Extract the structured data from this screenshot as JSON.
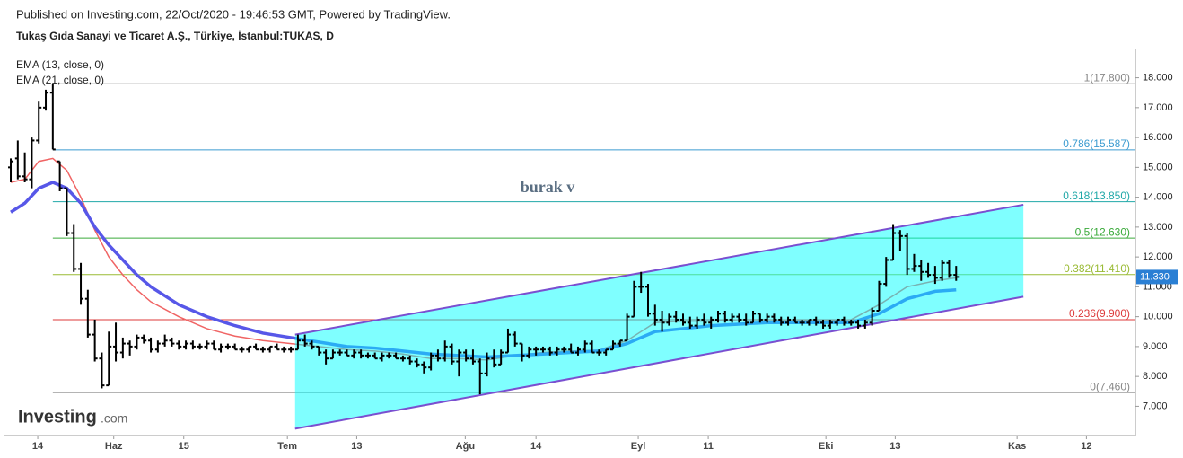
{
  "chart_data": {
    "type": "ohlc",
    "header": "Published on Investing.com, 22/Oct/2020 - 19:46:53 GMT, Powered by TradingView.",
    "title": "Tukaş Gıda Sanayi ve Ticaret A.Ş., Türkiye, İstanbul:TUKAS, D",
    "annotation": "burak v",
    "logo": "Investing",
    "logo_suffix": ".com",
    "bar_color": "#000000",
    "xlim": [
      -0.9,
      160.6
    ],
    "ylim": [
      6.05,
      18.95
    ],
    "yticks": [
      {
        "value": 7,
        "label": "7.000"
      },
      {
        "value": 8,
        "label": "8.000"
      },
      {
        "value": 9,
        "label": "9.000"
      },
      {
        "value": 10,
        "label": "10.000"
      },
      {
        "value": 11,
        "label": "11.000"
      },
      {
        "value": 12,
        "label": "12.000"
      },
      {
        "value": 13,
        "label": "13.000"
      },
      {
        "value": 14,
        "label": "14.000"
      },
      {
        "value": 15,
        "label": "15.000"
      },
      {
        "value": 16,
        "label": "16.000"
      },
      {
        "value": 17,
        "label": "17.000"
      },
      {
        "value": 18,
        "label": "18.000"
      }
    ],
    "xticks": [
      {
        "value": 3.85,
        "label": "14"
      },
      {
        "value": 14.7,
        "label": "Haz"
      },
      {
        "value": 24.7,
        "label": "15"
      },
      {
        "value": 39.5,
        "label": "Tem"
      },
      {
        "value": 49.4,
        "label": "13"
      },
      {
        "value": 64.9,
        "label": "Ağu"
      },
      {
        "value": 75,
        "label": "14"
      },
      {
        "value": 89.6,
        "label": "Eyl"
      },
      {
        "value": 99.6,
        "label": "11"
      },
      {
        "value": 116.4,
        "label": "Eki"
      },
      {
        "value": 126.3,
        "label": "13"
      },
      {
        "value": 143.7,
        "label": "Kas"
      },
      {
        "value": 153.6,
        "label": "12"
      }
    ],
    "last_price": {
      "value": 11.33,
      "label": "11.330",
      "color": "#2a7fd4"
    },
    "ohlc": [
      [
        15.0,
        15.3,
        14.5,
        15.2
      ],
      [
        15.3,
        15.9,
        14.6,
        14.7
      ],
      [
        14.7,
        15.5,
        14.5,
        14.6
      ],
      [
        14.6,
        16.0,
        14.3,
        15.9
      ],
      [
        15.9,
        17.2,
        15.8,
        17.0
      ],
      [
        17.0,
        17.6,
        16.9,
        17.5
      ],
      [
        17.5,
        17.8,
        15.6,
        15.6
      ],
      [
        15.2,
        15.2,
        14.2,
        14.3
      ],
      [
        14.3,
        14.3,
        12.7,
        12.8
      ],
      [
        12.8,
        13.1,
        11.5,
        11.6
      ],
      [
        11.6,
        11.8,
        10.4,
        10.6
      ],
      [
        10.6,
        10.9,
        9.3,
        9.4
      ],
      [
        9.4,
        9.9,
        8.5,
        8.6
      ],
      [
        8.6,
        8.8,
        7.6,
        7.7
      ],
      [
        7.7,
        9.5,
        7.7,
        9.0
      ],
      [
        9.0,
        9.8,
        8.5,
        8.8
      ],
      [
        8.8,
        9.3,
        8.6,
        9.1
      ],
      [
        9.1,
        9.2,
        8.7,
        9.0
      ],
      [
        9.0,
        9.4,
        8.9,
        9.3
      ],
      [
        9.3,
        9.4,
        9.1,
        9.2
      ],
      [
        9.2,
        9.3,
        8.8,
        8.9
      ],
      [
        8.9,
        9.2,
        8.8,
        9.1
      ],
      [
        9.1,
        9.4,
        9.0,
        9.2
      ],
      [
        9.2,
        9.3,
        9.0,
        9.1
      ],
      [
        9.1,
        9.2,
        8.9,
        9.0
      ],
      [
        9.0,
        9.2,
        8.9,
        9.1
      ],
      [
        9.1,
        9.2,
        8.9,
        9.0
      ],
      [
        9.0,
        9.1,
        8.9,
        9.0
      ],
      [
        9.0,
        9.2,
        8.9,
        9.1
      ],
      [
        9.1,
        9.2,
        8.9,
        8.9
      ],
      [
        8.9,
        9.1,
        8.8,
        9.0
      ],
      [
        9.0,
        9.1,
        8.9,
        9.0
      ],
      [
        9.0,
        9.1,
        8.9,
        8.9
      ],
      [
        8.9,
        9.0,
        8.8,
        8.9
      ],
      [
        8.9,
        9.0,
        8.8,
        9.0
      ],
      [
        9.0,
        9.1,
        8.9,
        8.9
      ],
      [
        8.9,
        9.0,
        8.8,
        8.9
      ],
      [
        8.9,
        9.0,
        8.8,
        9.0
      ],
      [
        9.0,
        9.1,
        8.9,
        8.9
      ],
      [
        8.9,
        9.0,
        8.8,
        8.9
      ],
      [
        8.9,
        9.0,
        8.8,
        8.9
      ],
      [
        8.9,
        9.4,
        8.9,
        9.2
      ],
      [
        9.2,
        9.4,
        9.0,
        9.1
      ],
      [
        9.1,
        9.2,
        8.9,
        9.0
      ],
      [
        9.0,
        9.0,
        8.7,
        8.8
      ],
      [
        8.8,
        8.9,
        8.4,
        8.6
      ],
      [
        8.6,
        8.9,
        8.6,
        8.8
      ],
      [
        8.8,
        8.9,
        8.7,
        8.8
      ],
      [
        8.8,
        8.9,
        8.7,
        8.7
      ],
      [
        8.7,
        8.9,
        8.6,
        8.8
      ],
      [
        8.8,
        8.9,
        8.6,
        8.7
      ],
      [
        8.7,
        8.8,
        8.6,
        8.7
      ],
      [
        8.7,
        8.8,
        8.6,
        8.6
      ],
      [
        8.6,
        8.8,
        8.5,
        8.7
      ],
      [
        8.7,
        8.8,
        8.6,
        8.7
      ],
      [
        8.7,
        8.8,
        8.6,
        8.6
      ],
      [
        8.6,
        8.7,
        8.5,
        8.6
      ],
      [
        8.6,
        8.7,
        8.4,
        8.5
      ],
      [
        8.5,
        8.6,
        8.3,
        8.4
      ],
      [
        8.4,
        8.5,
        8.1,
        8.3
      ],
      [
        8.3,
        8.8,
        8.2,
        8.7
      ],
      [
        8.7,
        8.9,
        8.5,
        8.6
      ],
      [
        8.6,
        9.2,
        8.5,
        9.0
      ],
      [
        9.0,
        9.1,
        8.4,
        8.5
      ],
      [
        8.5,
        8.9,
        8.0,
        8.8
      ],
      [
        8.8,
        8.9,
        8.5,
        8.6
      ],
      [
        8.6,
        8.9,
        8.4,
        8.5
      ],
      [
        8.5,
        8.6,
        7.4,
        8.1
      ],
      [
        8.1,
        8.8,
        8.0,
        8.6
      ],
      [
        8.6,
        8.9,
        8.3,
        8.4
      ],
      [
        8.4,
        8.9,
        8.4,
        8.8
      ],
      [
        8.8,
        9.6,
        8.8,
        9.4
      ],
      [
        9.4,
        9.5,
        9.0,
        9.1
      ],
      [
        9.1,
        9.1,
        8.5,
        8.7
      ],
      [
        8.7,
        9.0,
        8.6,
        8.9
      ],
      [
        8.9,
        9.0,
        8.7,
        8.9
      ],
      [
        8.9,
        9.0,
        8.8,
        8.9
      ],
      [
        8.9,
        9.0,
        8.7,
        8.8
      ],
      [
        8.8,
        9.0,
        8.7,
        8.9
      ],
      [
        8.9,
        9.0,
        8.8,
        8.9
      ],
      [
        8.9,
        9.1,
        8.8,
        8.8
      ],
      [
        8.8,
        9.0,
        8.7,
        8.9
      ],
      [
        8.9,
        9.2,
        8.8,
        9.1
      ],
      [
        9.1,
        9.2,
        8.8,
        8.8
      ],
      [
        8.8,
        8.9,
        8.7,
        8.8
      ],
      [
        8.8,
        8.9,
        8.7,
        8.9
      ],
      [
        8.9,
        9.2,
        8.9,
        9.1
      ],
      [
        9.1,
        9.2,
        9.0,
        9.2
      ],
      [
        9.2,
        10.1,
        9.2,
        10.0
      ],
      [
        10.0,
        11.2,
        10.0,
        11.0
      ],
      [
        11.0,
        11.5,
        10.8,
        11.0
      ],
      [
        11.0,
        11.1,
        10.0,
        10.1
      ],
      [
        10.1,
        10.4,
        9.7,
        9.9
      ],
      [
        9.9,
        10.2,
        9.5,
        9.8
      ],
      [
        9.8,
        10.1,
        9.7,
        10.0
      ],
      [
        10.0,
        10.2,
        9.8,
        9.9
      ],
      [
        9.9,
        10.1,
        9.7,
        9.8
      ],
      [
        9.8,
        10.0,
        9.6,
        9.7
      ],
      [
        9.7,
        10.0,
        9.6,
        9.9
      ],
      [
        9.9,
        10.1,
        9.7,
        9.8
      ],
      [
        9.8,
        10.0,
        9.6,
        9.9
      ],
      [
        9.9,
        10.2,
        9.8,
        10.1
      ],
      [
        10.1,
        10.2,
        9.8,
        9.9
      ],
      [
        9.9,
        10.1,
        9.8,
        10.0
      ],
      [
        10.0,
        10.1,
        9.8,
        9.9
      ],
      [
        9.9,
        10.1,
        9.7,
        9.8
      ],
      [
        9.8,
        10.2,
        9.8,
        10.1
      ],
      [
        10.1,
        10.1,
        9.8,
        9.9
      ],
      [
        9.9,
        10.1,
        9.8,
        10.0
      ],
      [
        10.0,
        10.1,
        9.8,
        9.9
      ],
      [
        9.9,
        10.0,
        9.7,
        9.8
      ],
      [
        9.8,
        10.0,
        9.7,
        9.9
      ],
      [
        9.9,
        10.0,
        9.8,
        9.8
      ],
      [
        9.8,
        9.9,
        9.7,
        9.8
      ],
      [
        9.8,
        9.9,
        9.7,
        9.9
      ],
      [
        9.9,
        10.0,
        9.7,
        9.8
      ],
      [
        9.8,
        9.9,
        9.6,
        9.7
      ],
      [
        9.7,
        9.9,
        9.6,
        9.8
      ],
      [
        9.8,
        9.9,
        9.7,
        9.9
      ],
      [
        9.9,
        10.0,
        9.7,
        9.8
      ],
      [
        9.8,
        9.9,
        9.7,
        9.8
      ],
      [
        9.8,
        9.9,
        9.6,
        9.7
      ],
      [
        9.7,
        9.9,
        9.6,
        9.8
      ],
      [
        9.8,
        10.3,
        9.7,
        10.2
      ],
      [
        10.2,
        11.2,
        10.2,
        11.1
      ],
      [
        11.1,
        12.0,
        11.0,
        11.9
      ],
      [
        11.9,
        13.1,
        11.9,
        12.8
      ],
      [
        12.8,
        12.9,
        12.2,
        12.7
      ],
      [
        12.7,
        12.8,
        11.4,
        11.6
      ],
      [
        11.6,
        12.1,
        11.5,
        11.7
      ],
      [
        11.7,
        11.9,
        11.2,
        11.5
      ],
      [
        11.5,
        11.8,
        11.3,
        11.4
      ],
      [
        11.4,
        11.7,
        11.1,
        11.3
      ],
      [
        11.3,
        11.9,
        11.2,
        11.8
      ],
      [
        11.8,
        11.9,
        11.3,
        11.4
      ],
      [
        11.4,
        11.7,
        11.2,
        11.33
      ]
    ],
    "series": [
      {
        "name": "EMA (13, close, 0)",
        "color": "#f06464",
        "width": 1.5,
        "x": [
          0,
          2,
          4,
          6,
          8,
          10,
          12,
          14,
          16,
          18,
          20,
          24,
          28,
          32,
          36,
          40,
          44,
          48,
          52,
          56,
          60,
          64,
          68,
          72,
          76,
          80,
          84,
          88,
          92,
          96,
          100,
          104,
          108,
          112,
          116,
          120,
          124,
          128,
          132,
          135
        ],
        "values": [
          14.5,
          14.6,
          15.2,
          15.3,
          14.9,
          14.0,
          12.9,
          12.0,
          11.4,
          10.9,
          10.5,
          10.0,
          9.6,
          9.35,
          9.2,
          9.1,
          9.0,
          8.9,
          8.85,
          8.75,
          8.6,
          8.6,
          8.55,
          8.7,
          8.8,
          8.85,
          8.88,
          9.2,
          9.8,
          9.85,
          9.85,
          9.9,
          9.9,
          9.88,
          9.85,
          9.9,
          10.4,
          11.0,
          11.2,
          11.3
        ]
      },
      {
        "name": "EMA (21, close, 0)",
        "color": "#5757e8",
        "width": 3.5,
        "x": [
          0,
          2,
          4,
          6,
          8,
          10,
          12,
          14,
          16,
          18,
          20,
          24,
          28,
          32,
          36,
          40,
          44,
          48,
          52,
          56,
          60,
          64,
          68,
          72,
          76,
          80,
          84,
          88,
          92,
          96,
          100,
          104,
          108,
          112,
          116,
          120,
          124,
          128,
          132,
          135
        ],
        "values": [
          13.5,
          13.8,
          14.3,
          14.5,
          14.3,
          13.8,
          13.0,
          12.4,
          11.9,
          11.4,
          11.0,
          10.4,
          10.0,
          9.7,
          9.45,
          9.3,
          9.15,
          9.0,
          8.95,
          8.85,
          8.75,
          8.7,
          8.65,
          8.7,
          8.75,
          8.8,
          8.85,
          9.1,
          9.5,
          9.6,
          9.7,
          9.75,
          9.8,
          9.8,
          9.8,
          9.8,
          10.1,
          10.6,
          10.85,
          10.9
        ]
      }
    ],
    "channel": {
      "x": [
        40.6,
        144.6
      ],
      "upper": [
        9.4,
        13.75
      ],
      "lower": [
        6.25,
        10.67
      ],
      "fill": "#00ffff",
      "stroke": "#7a4fd0"
    },
    "fib_start": 6,
    "fib_levels": [
      {
        "value": 17.8,
        "label": "1(17.800)",
        "color": "#888888"
      },
      {
        "value": 15.587,
        "label": "0.786(15.587)",
        "color": "#3b9bd0"
      },
      {
        "value": 13.85,
        "label": "0.618(13.850)",
        "color": "#20a8a8"
      },
      {
        "value": 12.63,
        "label": "0.5(12.630)",
        "color": "#3aaa3a"
      },
      {
        "value": 11.41,
        "label": "0.382(11.410)",
        "color": "#9abb35"
      },
      {
        "value": 9.9,
        "label": "0.236(9.900)",
        "color": "#dd3a3a"
      },
      {
        "value": 7.46,
        "label": "0(7.460)",
        "color": "#888888"
      }
    ]
  }
}
